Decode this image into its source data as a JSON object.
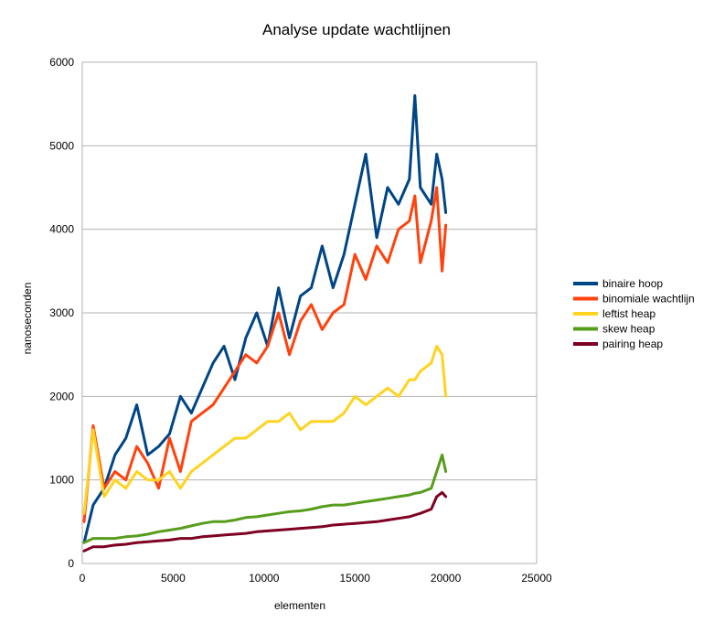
{
  "chart_data": {
    "type": "line",
    "title": "Analyse update wachtlijnen",
    "xlabel": "elementen",
    "ylabel": "nanoseconden",
    "xlim": [
      0,
      25000
    ],
    "ylim": [
      0,
      6000
    ],
    "x_ticks": [
      "0",
      "5000",
      "10000",
      "15000",
      "20000",
      "25000"
    ],
    "y_ticks": [
      "0",
      "1000",
      "2000",
      "3000",
      "4000",
      "5000",
      "6000"
    ],
    "grid": "horizontal",
    "legend_position": "right",
    "x": [
      100,
      600,
      1200,
      1800,
      2400,
      3000,
      3600,
      4200,
      4800,
      5400,
      6000,
      6600,
      7200,
      7800,
      8400,
      9000,
      9600,
      10200,
      10800,
      11400,
      12000,
      12600,
      13200,
      13800,
      14400,
      15000,
      15600,
      16200,
      16800,
      17400,
      18000,
      18300,
      18600,
      19200,
      19500,
      19800,
      20000
    ],
    "series": [
      {
        "name": "binaire hoop",
        "color": "#004586",
        "values": [
          250,
          700,
          900,
          1300,
          1500,
          1900,
          1300,
          1400,
          1550,
          2000,
          1800,
          2100,
          2400,
          2600,
          2200,
          2700,
          3000,
          2600,
          3300,
          2700,
          3200,
          3300,
          3800,
          3300,
          3700,
          4300,
          4900,
          3900,
          4500,
          4300,
          4600,
          5600,
          4500,
          4300,
          4900,
          4600,
          4200
        ]
      },
      {
        "name": "binomiale wachtlijn",
        "color": "#ff420e",
        "values": [
          500,
          1650,
          900,
          1100,
          1000,
          1400,
          1200,
          900,
          1500,
          1100,
          1700,
          1800,
          1900,
          2100,
          2300,
          2500,
          2400,
          2600,
          3000,
          2500,
          2900,
          3100,
          2800,
          3000,
          3100,
          3700,
          3400,
          3800,
          3600,
          4000,
          4100,
          4400,
          3600,
          4100,
          4500,
          3500,
          4050
        ]
      },
      {
        "name": "leftist heap",
        "color": "#ffd320",
        "values": [
          600,
          1600,
          800,
          1000,
          900,
          1100,
          1000,
          1000,
          1100,
          900,
          1100,
          1200,
          1300,
          1400,
          1500,
          1500,
          1600,
          1700,
          1700,
          1800,
          1600,
          1700,
          1700,
          1700,
          1800,
          2000,
          1900,
          2000,
          2100,
          2000,
          2200,
          2200,
          2300,
          2400,
          2600,
          2500,
          2000
        ]
      },
      {
        "name": "skew heap",
        "color": "#579d1c",
        "values": [
          250,
          300,
          300,
          300,
          320,
          330,
          350,
          380,
          400,
          420,
          450,
          480,
          500,
          500,
          520,
          550,
          560,
          580,
          600,
          620,
          630,
          650,
          680,
          700,
          700,
          720,
          740,
          760,
          780,
          800,
          820,
          840,
          850,
          900,
          1100,
          1300,
          1100
        ]
      },
      {
        "name": "pairing heap",
        "color": "#7e0021",
        "values": [
          150,
          200,
          200,
          220,
          230,
          250,
          260,
          270,
          280,
          300,
          300,
          320,
          330,
          340,
          350,
          360,
          380,
          390,
          400,
          410,
          420,
          430,
          440,
          460,
          470,
          480,
          490,
          500,
          520,
          540,
          560,
          580,
          600,
          650,
          800,
          850,
          800
        ]
      }
    ]
  }
}
